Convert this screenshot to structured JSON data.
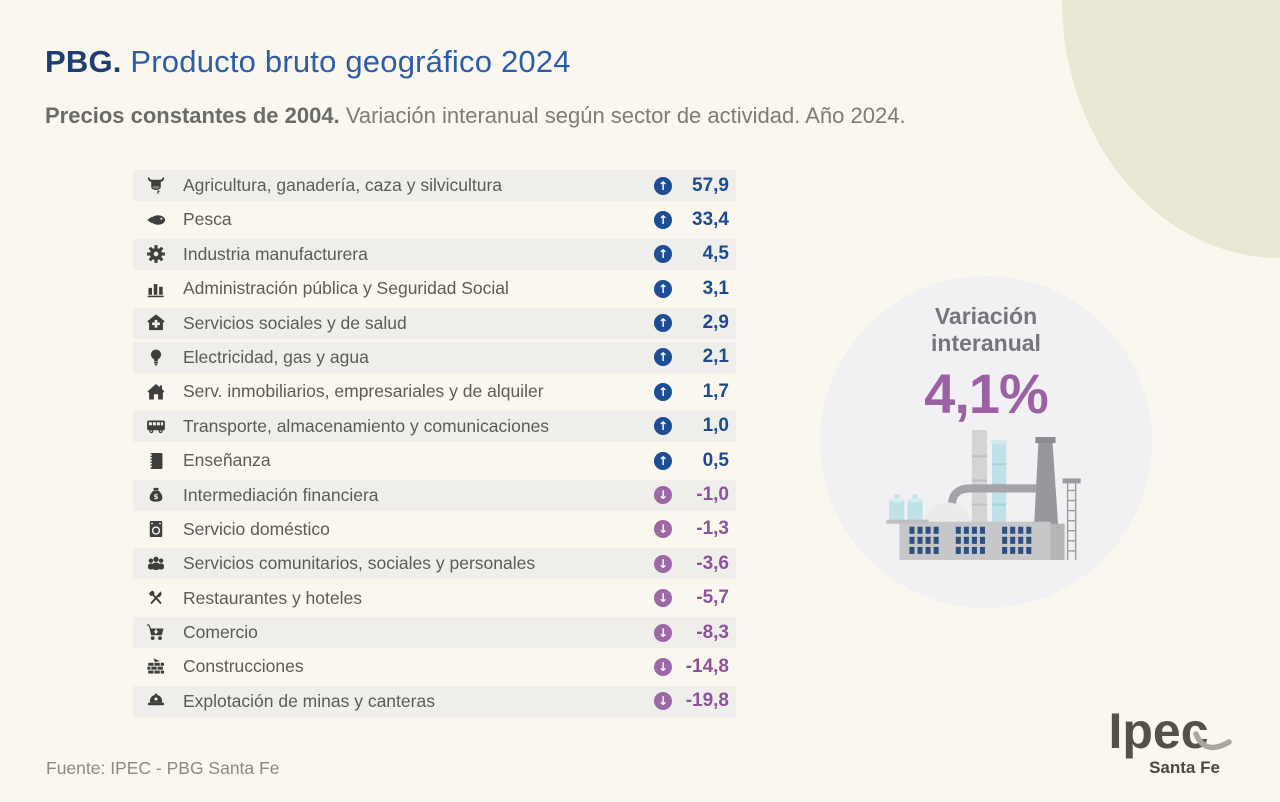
{
  "header": {
    "title_prefix": "PBG.",
    "title_rest": " Producto bruto geográfico 2024",
    "subtitle_bold": "Precios constantes de 2004.",
    "subtitle_rest": " Variación interanual según sector de actividad. Año 2024."
  },
  "colors": {
    "page_background": "#f9f7ee",
    "corner_beige": "#e9e7d4",
    "row_shade": "#efeeea",
    "positive_badge": "#1d4e95",
    "positive_value": "#1e4a90",
    "negative_badge": "#9c68a6",
    "negative_value": "#8c529b",
    "summary_purple": "#9b61a4"
  },
  "chart_data": {
    "type": "table",
    "title": "PBG. Producto bruto geográfico 2024",
    "subtitle": "Precios constantes de 2004. Variación interanual según sector de actividad. Año 2024.",
    "unit": "percent interannual variation",
    "summary_label": "Variación interanual",
    "summary_value": "4,1%",
    "summary_value_numeric": 4.1,
    "sectors": [
      {
        "label": "Agricultura, ganadería, caza y silvicultura",
        "icon": "cow-icon",
        "direction": "up",
        "value": 57.9,
        "display": "57,9",
        "shaded": true
      },
      {
        "label": "Pesca",
        "icon": "fish-icon",
        "direction": "up",
        "value": 33.4,
        "display": "33,4",
        "shaded": false
      },
      {
        "label": "Industria manufacturera",
        "icon": "gear-icon",
        "direction": "up",
        "value": 4.5,
        "display": "4,5",
        "shaded": true
      },
      {
        "label": "Administración pública y Seguridad Social",
        "icon": "bar-chart-icon",
        "direction": "up",
        "value": 3.1,
        "display": "3,1",
        "shaded": false
      },
      {
        "label": "Servicios sociales y de salud",
        "icon": "health-house-icon",
        "direction": "up",
        "value": 2.9,
        "display": "2,9",
        "shaded": true
      },
      {
        "label": "Electricidad, gas y agua",
        "icon": "lightbulb-icon",
        "direction": "up",
        "value": 2.1,
        "display": "2,1",
        "shaded": true
      },
      {
        "label": "Serv. inmobiliarios, empresariales y de alquiler",
        "icon": "house-icon",
        "direction": "up",
        "value": 1.7,
        "display": "1,7",
        "shaded": false
      },
      {
        "label": "Transporte, almacenamiento y comunicaciones",
        "icon": "bus-icon",
        "direction": "up",
        "value": 1.0,
        "display": "1,0",
        "shaded": true
      },
      {
        "label": "Enseñanza",
        "icon": "notebook-icon",
        "direction": "up",
        "value": 0.5,
        "display": "0,5",
        "shaded": false
      },
      {
        "label": "Intermediación financiera",
        "icon": "money-bag-icon",
        "direction": "down",
        "value": -1.0,
        "display": "-1,0",
        "shaded": true
      },
      {
        "label": "Servicio doméstico",
        "icon": "washing-machine-icon",
        "direction": "down",
        "value": -1.3,
        "display": "-1,3",
        "shaded": false
      },
      {
        "label": "Servicios comunitarios, sociales y personales",
        "icon": "people-icon",
        "direction": "down",
        "value": -3.6,
        "display": "-3,6",
        "shaded": true
      },
      {
        "label": "Restaurantes y hoteles",
        "icon": "cutlery-icon",
        "direction": "down",
        "value": -5.7,
        "display": "-5,7",
        "shaded": false
      },
      {
        "label": "Comercio",
        "icon": "cart-icon",
        "direction": "down",
        "value": -8.3,
        "display": "-8,3",
        "shaded": true
      },
      {
        "label": "Construcciones",
        "icon": "bricks-icon",
        "direction": "down",
        "value": -14.8,
        "display": "-14,8",
        "shaded": false
      },
      {
        "label": "Explotación de minas y canteras",
        "icon": "mining-helmet-icon",
        "direction": "down",
        "value": -19.8,
        "display": "-19,8",
        "shaded": true
      }
    ]
  },
  "footer": {
    "source": "Fuente: IPEC - PBG Santa Fe"
  },
  "logo": {
    "name": "Ipec",
    "region": "Santa Fe"
  }
}
